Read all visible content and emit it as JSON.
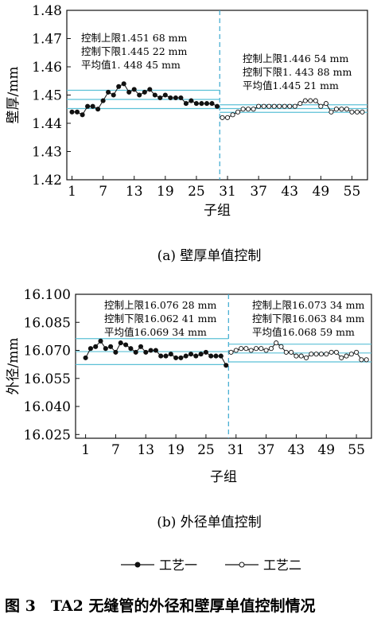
{
  "figure_caption": "图 3　TA2 无缝管的外径和壁厚单值控制情况",
  "legend": {
    "process1": "工艺一",
    "process2": "工艺二"
  },
  "chart_data": [
    {
      "type": "line",
      "subcaption": "(a)  壁厚单值控制",
      "xlabel": "子组",
      "ylabel": "壁厚/mm",
      "x_ticks": [
        "1",
        "7",
        "13",
        "19",
        "25",
        "31",
        "37",
        "43",
        "49",
        "55"
      ],
      "y_ticks": [
        "1.42",
        "1.43",
        "1.44",
        "1.45",
        "1.46",
        "1.47",
        "1.48"
      ],
      "ylim": [
        1.42,
        1.48
      ],
      "xlim": [
        0,
        58
      ],
      "split_x": 29.5,
      "series": [
        {
          "name": "工艺一",
          "x": [
            1,
            2,
            3,
            4,
            5,
            6,
            7,
            8,
            9,
            10,
            11,
            12,
            13,
            14,
            15,
            16,
            17,
            18,
            19,
            20,
            21,
            22,
            23,
            24,
            25,
            26,
            27,
            28,
            29
          ],
          "values": [
            1.444,
            1.444,
            1.443,
            1.446,
            1.446,
            1.445,
            1.448,
            1.451,
            1.45,
            1.453,
            1.454,
            1.451,
            1.452,
            1.45,
            1.451,
            1.452,
            1.45,
            1.449,
            1.45,
            1.449,
            1.449,
            1.449,
            1.447,
            1.448,
            1.447,
            1.447,
            1.447,
            1.447,
            1.446
          ],
          "limits": {
            "ucl": 1.45168,
            "lcl": 1.44522,
            "mean": 1.44845
          }
        },
        {
          "name": "工艺二",
          "x": [
            30,
            31,
            32,
            33,
            34,
            35,
            36,
            37,
            38,
            39,
            40,
            41,
            42,
            43,
            44,
            45,
            46,
            47,
            48,
            49,
            50,
            51,
            52,
            53,
            54,
            55,
            56,
            57
          ],
          "values": [
            1.442,
            1.442,
            1.443,
            1.444,
            1.445,
            1.445,
            1.445,
            1.446,
            1.446,
            1.446,
            1.446,
            1.446,
            1.446,
            1.446,
            1.446,
            1.447,
            1.448,
            1.448,
            1.448,
            1.446,
            1.447,
            1.444,
            1.445,
            1.445,
            1.445,
            1.444,
            1.444,
            1.444
          ],
          "limits": {
            "ucl": 1.44654,
            "lcl": 1.44388,
            "mean": 1.44521
          }
        }
      ],
      "annotations": [
        {
          "group": "left",
          "lines": [
            "控制上限1.451 68 mm",
            "控制下限1.445 22 mm",
            "平均值1. 448 45  mm"
          ]
        },
        {
          "group": "right",
          "lines": [
            "控制上限1.446 54 mm",
            "控制下限1. 443 88 mm",
            "平均值1.445 21  mm"
          ]
        }
      ]
    },
    {
      "type": "line",
      "subcaption": "(b)  外径单值控制",
      "xlabel": "子组",
      "ylabel": "外径/mm",
      "x_ticks": [
        "1",
        "7",
        "13",
        "19",
        "25",
        "31",
        "37",
        "43",
        "49",
        "55"
      ],
      "y_ticks": [
        "16.025",
        "16.040",
        "16.055",
        "16.070",
        "16.085",
        "16.100"
      ],
      "ylim": [
        16.023,
        16.1
      ],
      "xlim": [
        -1,
        58
      ],
      "split_x": 29.5,
      "series": [
        {
          "name": "工艺一",
          "x": [
            1,
            2,
            3,
            4,
            5,
            6,
            7,
            8,
            9,
            10,
            11,
            12,
            13,
            14,
            15,
            16,
            17,
            18,
            19,
            20,
            21,
            22,
            23,
            24,
            25,
            26,
            27,
            28,
            29
          ],
          "values": [
            16.066,
            16.071,
            16.072,
            16.075,
            16.071,
            16.072,
            16.069,
            16.074,
            16.073,
            16.071,
            16.069,
            16.072,
            16.069,
            16.07,
            16.07,
            16.067,
            16.067,
            16.068,
            16.066,
            16.066,
            16.067,
            16.068,
            16.067,
            16.068,
            16.069,
            16.067,
            16.067,
            16.067,
            16.062
          ],
          "limits": {
            "ucl": 16.07628,
            "lcl": 16.06241,
            "mean": 16.06934
          }
        },
        {
          "name": "工艺二",
          "x": [
            30,
            31,
            32,
            33,
            34,
            35,
            36,
            37,
            38,
            39,
            40,
            41,
            42,
            43,
            44,
            45,
            46,
            47,
            48,
            49,
            50,
            51,
            52,
            53,
            54,
            55,
            56,
            57
          ],
          "values": [
            16.069,
            16.07,
            16.071,
            16.071,
            16.07,
            16.071,
            16.071,
            16.07,
            16.071,
            16.074,
            16.072,
            16.069,
            16.069,
            16.067,
            16.067,
            16.066,
            16.068,
            16.068,
            16.068,
            16.068,
            16.069,
            16.069,
            16.066,
            16.067,
            16.068,
            16.069,
            16.065,
            16.065
          ],
          "limits": {
            "ucl": 16.07334,
            "lcl": 16.06384,
            "mean": 16.06859
          }
        }
      ],
      "annotations": [
        {
          "group": "left",
          "lines": [
            "控制上限16.076 28 mm",
            "控制下限16.062 41 mm",
            "平均值16.069  34  mm"
          ]
        },
        {
          "group": "right",
          "lines": [
            "控制上限16.073 34 mm",
            "控制下限16.063 84 mm",
            "平均值16.068 59  mm"
          ]
        }
      ]
    }
  ]
}
